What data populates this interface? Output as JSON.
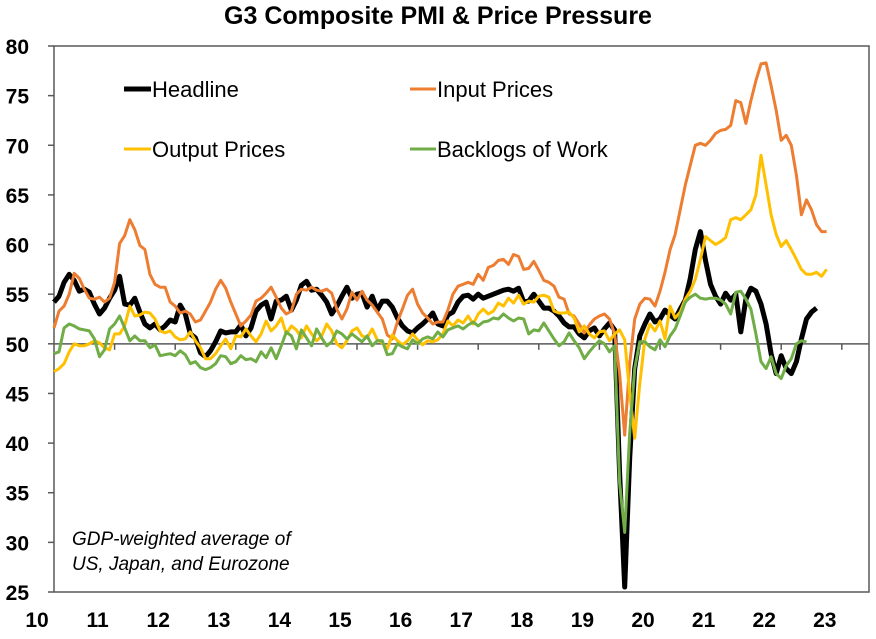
{
  "chart_data": {
    "type": "line",
    "title": "G3 Composite PMI & Price Pressure",
    "xlabel": "",
    "ylabel": "",
    "ylim": [
      25,
      80
    ],
    "yticks": [
      25,
      30,
      35,
      40,
      45,
      50,
      55,
      60,
      65,
      70,
      75,
      80
    ],
    "xlim": [
      2010,
      2023.45
    ],
    "xtick_labels": [
      "10",
      "11",
      "12",
      "13",
      "14",
      "15",
      "16",
      "17",
      "18",
      "19",
      "20",
      "21",
      "22",
      "23"
    ],
    "reference_line": 50,
    "grid": false,
    "legend_placement": "top-left",
    "annotation": [
      "GDP-weighted average of",
      "US, Japan, and Eurozone"
    ],
    "x_start": "2010-01",
    "frequency": "monthly",
    "series": [
      {
        "name": "Headline",
        "color": "#000000",
        "values": [
          54.2,
          54.8,
          56.2,
          57.0,
          56.4,
          55.3,
          55.5,
          55.2,
          54.0,
          53.0,
          53.6,
          54.6,
          55.4,
          56.8,
          54.0,
          53.9,
          54.6,
          53.2,
          52.0,
          51.6,
          52.0,
          51.4,
          51.8,
          52.4,
          52.2,
          53.9,
          53.0,
          51.0,
          50.6,
          49.1,
          48.7,
          49.3,
          50.2,
          51.3,
          51.1,
          51.2,
          51.2,
          51.9,
          50.8,
          51.6,
          53.3,
          53.9,
          54.2,
          52.5,
          54.3,
          54.4,
          54.8,
          53.4,
          54.4,
          55.9,
          56.3,
          55.4,
          55.5,
          54.9,
          54.2,
          53.0,
          53.8,
          54.8,
          55.7,
          54.6,
          55.0,
          55.1,
          53.7,
          54.8,
          53.4,
          54.3,
          54.3,
          53.7,
          52.6,
          51.8,
          51.3,
          51.1,
          51.6,
          52.0,
          52.5,
          53.1,
          52.0,
          51.8,
          52.9,
          53.2,
          54.2,
          54.8,
          54.9,
          54.5,
          55.0,
          54.6,
          54.8,
          55.0,
          55.2,
          55.4,
          55.5,
          55.3,
          55.6,
          54.2,
          54.3,
          55.0,
          54.3,
          53.6,
          53.6,
          53.3,
          52.8,
          52.1,
          51.7,
          51.7,
          51.0,
          50.6,
          51.3,
          51.6,
          50.8,
          51.5,
          52.1,
          51.4,
          37.0,
          25.5,
          38.5,
          47.5,
          50.8,
          52.0,
          53.0,
          52.2,
          52.5,
          53.4,
          52.9,
          52.5,
          53.5,
          54.4,
          56.6,
          59.5,
          61.3,
          58.4,
          56.0,
          54.8,
          54.0,
          55.1,
          54.4,
          55.0,
          51.2,
          54.5,
          55.6,
          55.3,
          54.0,
          52.0,
          49.0,
          47.0,
          48.8,
          47.5,
          47.0,
          48.2,
          50.5,
          52.5,
          53.2,
          53.6
        ]
      },
      {
        "name": "Input Prices",
        "color": "#ED7D31",
        "values": [
          51.6,
          53.3,
          53.8,
          55.0,
          57.1,
          56.6,
          55.5,
          54.6,
          54.5,
          54.7,
          54.2,
          54.6,
          56.2,
          60.1,
          60.9,
          62.5,
          61.5,
          59.9,
          59.5,
          57.0,
          56.0,
          55.7,
          55.7,
          54.2,
          53.8,
          53.1,
          53.3,
          53.0,
          52.2,
          52.4,
          53.3,
          54.2,
          55.5,
          56.4,
          55.6,
          54.2,
          53.0,
          51.8,
          52.3,
          52.9,
          54.3,
          54.6,
          55.1,
          55.7,
          54.7,
          53.6,
          53.0,
          53.3,
          55.0,
          55.5,
          55.4,
          55.7,
          55.4,
          55.3,
          55.5,
          55.1,
          53.5,
          52.5,
          53.5,
          55.2,
          54.4,
          55.3,
          54.4,
          53.9,
          53.2,
          52.5,
          50.9,
          50.5,
          52.2,
          53.5,
          54.9,
          55.5,
          54.0,
          53.1,
          52.6,
          52.0,
          52.2,
          52.2,
          53.4,
          55.0,
          55.8,
          56.0,
          56.2,
          56.0,
          57.0,
          56.4,
          57.7,
          57.9,
          58.4,
          58.5,
          58.0,
          59.0,
          58.8,
          57.5,
          57.6,
          58.3,
          57.4,
          56.4,
          56.2,
          55.8,
          54.7,
          54.5,
          53.0,
          52.8,
          52.0,
          51.1,
          51.9,
          52.5,
          52.8,
          53.0,
          52.5,
          51.0,
          47.0,
          40.8,
          48.0,
          52.5,
          54.0,
          54.6,
          54.5,
          53.8,
          55.3,
          57.2,
          59.5,
          61.0,
          63.5,
          66.0,
          68.0,
          70.0,
          70.2,
          70.0,
          70.5,
          71.2,
          71.5,
          71.6,
          72.0,
          74.5,
          74.3,
          72.2,
          74.5,
          76.5,
          78.2,
          78.3,
          76.0,
          73.5,
          70.5,
          71.0,
          70.0,
          67.0,
          63.0,
          64.5,
          63.5,
          62.0,
          61.3,
          61.3
        ]
      },
      {
        "name": "Output Prices",
        "color": "#FFC000",
        "values": [
          47.2,
          47.5,
          48.0,
          49.2,
          50.0,
          49.8,
          49.8,
          50.0,
          50.3,
          50.1,
          49.6,
          49.4,
          51.0,
          51.0,
          51.8,
          53.8,
          52.8,
          52.9,
          53.2,
          53.1,
          52.5,
          51.3,
          51.1,
          51.3,
          50.7,
          50.4,
          50.5,
          51.2,
          50.3,
          49.6,
          48.5,
          48.5,
          49.0,
          49.8,
          50.5,
          49.5,
          50.8,
          50.7,
          51.5,
          50.8,
          50.2,
          51.0,
          52.3,
          51.3,
          51.8,
          52.6,
          51.0,
          51.8,
          51.4,
          50.6,
          51.8,
          51.0,
          50.3,
          50.8,
          52.0,
          51.3,
          50.0,
          49.6,
          50.3,
          51.3,
          51.6,
          50.8,
          50.6,
          51.5,
          50.4,
          50.1,
          49.5,
          50.9,
          50.3,
          49.9,
          50.3,
          51.0,
          50.4,
          49.9,
          50.3,
          50.2,
          50.4,
          51.0,
          52.3,
          51.8,
          52.4,
          52.1,
          52.8,
          52.0,
          53.0,
          53.5,
          53.0,
          53.3,
          54.1,
          53.8,
          54.6,
          54.1,
          54.9,
          54.0,
          54.3,
          54.2,
          54.8,
          54.9,
          54.7,
          53.3,
          53.1,
          53.1,
          53.2,
          52.6,
          51.2,
          51.8,
          51.0,
          50.6,
          51.2,
          51.3,
          50.3,
          51.0,
          51.4,
          50.4,
          45.0,
          40.5,
          46.0,
          50.5,
          52.0,
          51.3,
          52.3,
          50.5,
          53.8,
          52.6,
          53.2,
          54.5,
          55.3,
          56.5,
          58.5,
          60.8,
          60.4,
          60.0,
          60.3,
          60.7,
          62.5,
          62.7,
          62.5,
          63.0,
          63.5,
          65.0,
          69.0,
          66.0,
          63.0,
          61.0,
          59.8,
          60.4,
          59.5,
          58.5,
          57.5,
          57.0,
          57.0,
          57.2,
          56.8,
          57.5
        ]
      },
      {
        "name": "Backlogs of Work",
        "color": "#70AD47",
        "values": [
          49.0,
          49.2,
          51.6,
          52.0,
          51.8,
          51.5,
          51.4,
          51.3,
          50.5,
          48.7,
          49.4,
          51.5,
          52.0,
          52.8,
          51.6,
          50.3,
          50.8,
          50.3,
          50.3,
          49.6,
          49.9,
          48.8,
          48.9,
          49.0,
          48.8,
          49.3,
          48.9,
          48.0,
          48.2,
          47.6,
          47.4,
          47.6,
          48.0,
          48.8,
          48.7,
          48.0,
          48.2,
          48.8,
          48.4,
          48.5,
          48.2,
          49.2,
          48.6,
          49.6,
          48.5,
          49.8,
          51.2,
          50.8,
          49.5,
          51.4,
          50.6,
          49.8,
          51.5,
          50.6,
          49.8,
          50.2,
          51.3,
          51.0,
          50.5,
          51.0,
          50.6,
          50.2,
          50.8,
          49.8,
          50.3,
          50.3,
          48.9,
          49.0,
          50.0,
          49.7,
          49.5,
          50.4,
          50.0,
          50.5,
          50.7,
          50.5,
          51.2,
          50.7,
          51.4,
          51.6,
          51.8,
          51.5,
          51.9,
          52.2,
          51.8,
          52.2,
          52.3,
          52.6,
          52.5,
          53.0,
          52.6,
          52.3,
          52.6,
          52.5,
          51.0,
          51.4,
          51.3,
          52.1,
          51.3,
          50.5,
          49.8,
          50.2,
          51.1,
          50.3,
          49.6,
          48.5,
          49.2,
          49.8,
          50.3,
          50.0,
          49.2,
          49.8,
          36.0,
          31.0,
          41.0,
          47.5,
          50.2,
          50.2,
          49.7,
          49.4,
          50.4,
          49.7,
          50.8,
          51.5,
          52.8,
          54.2,
          54.7,
          55.0,
          54.6,
          54.5,
          54.6,
          54.6,
          54.4,
          54.0,
          53.0,
          55.2,
          55.3,
          54.5,
          53.5,
          51.0,
          48.2,
          47.5,
          48.7,
          47.0,
          46.5,
          47.8,
          48.5,
          50.0,
          50.3,
          50.2
        ]
      }
    ]
  }
}
